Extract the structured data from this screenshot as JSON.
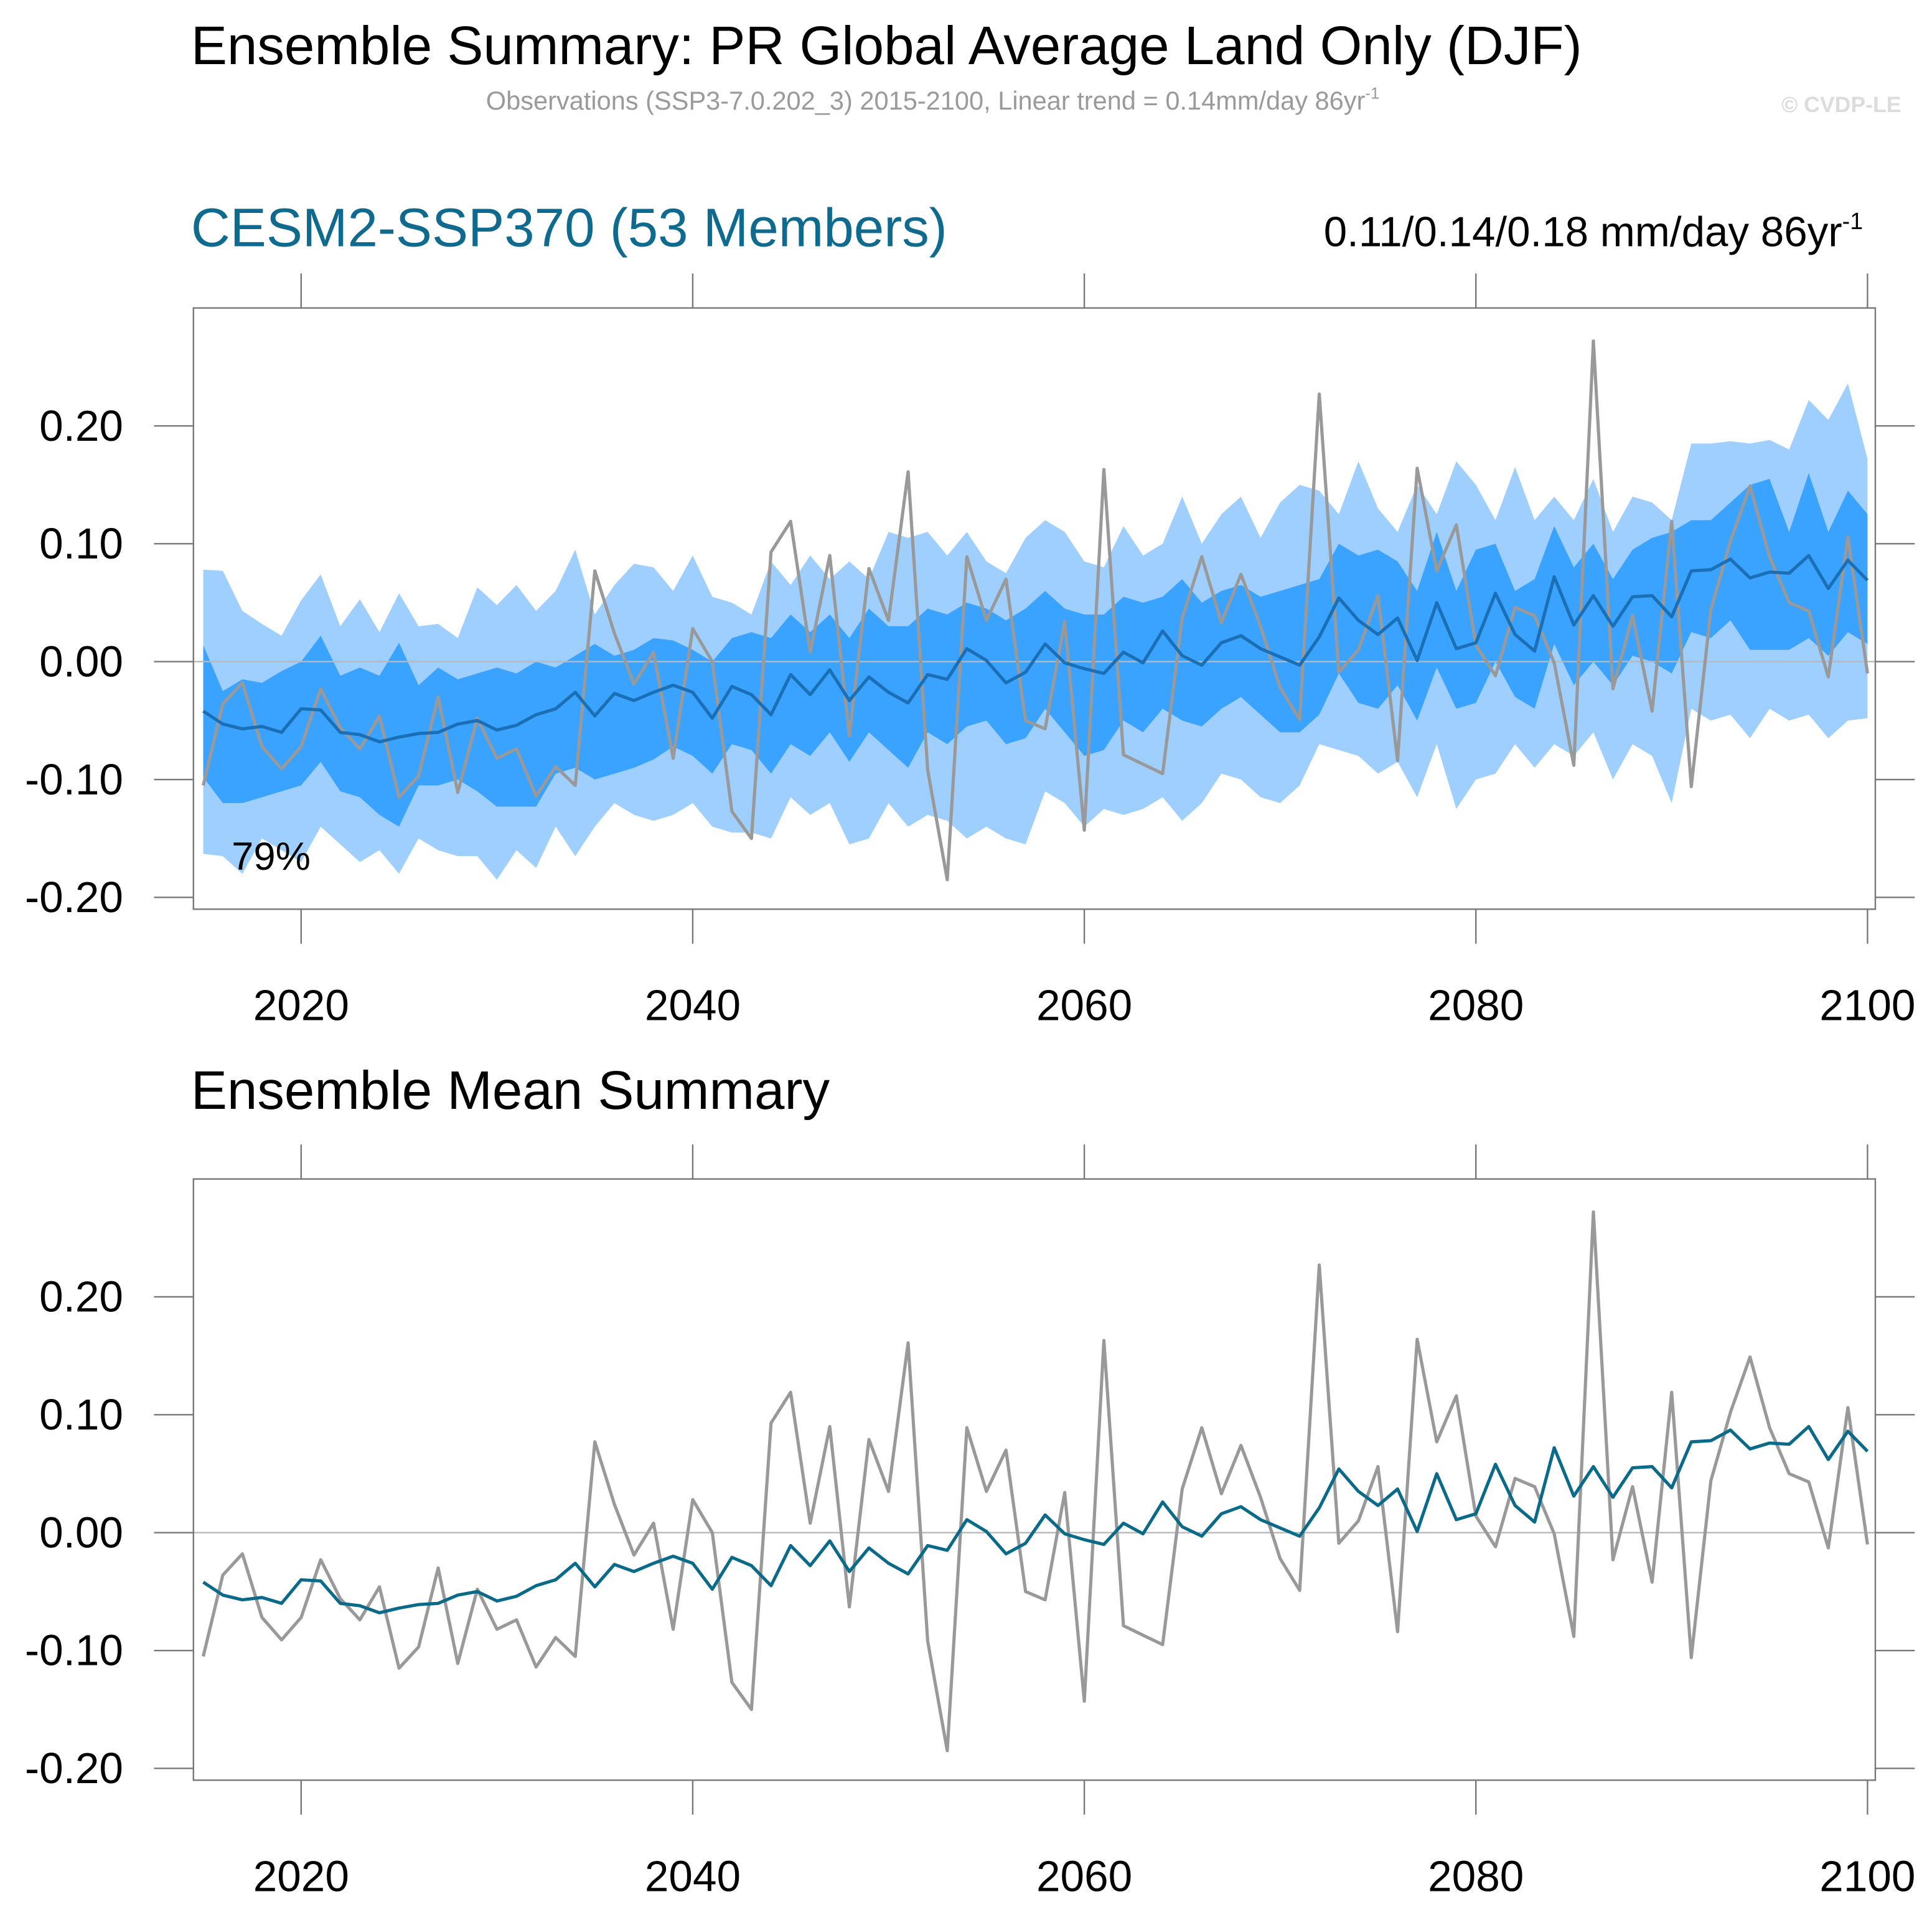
{
  "title": "Ensemble Summary: PR Global Average Land Only (DJF)",
  "subtitle": "Observations (SSP3-7.0.202_3) 2015-2100, Linear trend = 0.14mm/day 86yr",
  "subtitle_sup": "-1",
  "watermark": "© CVDP-LE",
  "chart_data": [
    {
      "type": "band_line",
      "title": "CESM2-SSP370 (53 Members)",
      "annotation": "0.11/0.14/0.18 mm/day 86yr",
      "annotation_sup": "-1",
      "inset_label": "79%",
      "x": [
        2015,
        2016,
        2017,
        2018,
        2019,
        2020,
        2021,
        2022,
        2023,
        2024,
        2025,
        2026,
        2027,
        2028,
        2029,
        2030,
        2031,
        2032,
        2033,
        2034,
        2035,
        2036,
        2037,
        2038,
        2039,
        2040,
        2041,
        2042,
        2043,
        2044,
        2045,
        2046,
        2047,
        2048,
        2049,
        2050,
        2051,
        2052,
        2053,
        2054,
        2055,
        2056,
        2057,
        2058,
        2059,
        2060,
        2061,
        2062,
        2063,
        2064,
        2065,
        2066,
        2067,
        2068,
        2069,
        2070,
        2071,
        2072,
        2073,
        2074,
        2075,
        2076,
        2077,
        2078,
        2079,
        2080,
        2081,
        2082,
        2083,
        2084,
        2085,
        2086,
        2087,
        2088,
        2089,
        2090,
        2091,
        2092,
        2093,
        2094,
        2095,
        2096,
        2097,
        2098,
        2099,
        2100
      ],
      "xlim": [
        2014.5,
        2100.4
      ],
      "xticks": [
        2020,
        2040,
        2060,
        2080,
        2100
      ],
      "ylim": [
        -0.21,
        0.3
      ],
      "yticks": [
        {
          "value": -0.2,
          "label": "-0.20"
        },
        {
          "value": -0.1,
          "label": "-0.10"
        },
        {
          "value": 0,
          "label": "0.00"
        },
        {
          "value": 0.1,
          "label": "0.10"
        },
        {
          "value": 0.2,
          "label": "0.20"
        }
      ],
      "bands": [
        {
          "color": "#9fcfff",
          "upper": [
            0.078,
            0.077,
            0.043,
            0.032,
            0.022,
            0.052,
            0.074,
            0.03,
            0.053,
            0.025,
            0.058,
            0.03,
            0.032,
            0.02,
            0.063,
            0.048,
            0.065,
            0.043,
            0.06,
            0.095,
            0.04,
            0.065,
            0.083,
            0.08,
            0.06,
            0.09,
            0.055,
            0.05,
            0.04,
            0.085,
            0.065,
            0.09,
            0.07,
            0.085,
            0.07,
            0.11,
            0.105,
            0.11,
            0.09,
            0.11,
            0.085,
            0.075,
            0.105,
            0.12,
            0.11,
            0.085,
            0.08,
            0.115,
            0.09,
            0.1,
            0.14,
            0.1,
            0.125,
            0.14,
            0.105,
            0.135,
            0.15,
            0.145,
            0.125,
            0.17,
            0.13,
            0.11,
            0.15,
            0.125,
            0.17,
            0.15,
            0.12,
            0.165,
            0.12,
            0.14,
            0.12,
            0.155,
            0.11,
            0.14,
            0.135,
            0.12,
            0.185,
            0.185,
            0.187,
            0.185,
            0.188,
            0.18,
            0.222,
            0.205,
            0.236,
            0.172
          ],
          "lower": [
            -0.163,
            -0.165,
            -0.18,
            -0.15,
            -0.16,
            -0.17,
            -0.14,
            -0.155,
            -0.17,
            -0.16,
            -0.18,
            -0.15,
            -0.16,
            -0.165,
            -0.165,
            -0.185,
            -0.16,
            -0.175,
            -0.14,
            -0.165,
            -0.14,
            -0.12,
            -0.13,
            -0.135,
            -0.13,
            -0.12,
            -0.14,
            -0.145,
            -0.145,
            -0.15,
            -0.115,
            -0.13,
            -0.12,
            -0.155,
            -0.15,
            -0.12,
            -0.14,
            -0.13,
            -0.135,
            -0.15,
            -0.14,
            -0.15,
            -0.155,
            -0.11,
            -0.12,
            -0.14,
            -0.125,
            -0.13,
            -0.125,
            -0.115,
            -0.135,
            -0.12,
            -0.095,
            -0.1,
            -0.115,
            -0.12,
            -0.105,
            -0.07,
            -0.075,
            -0.08,
            -0.095,
            -0.085,
            -0.115,
            -0.07,
            -0.125,
            -0.1,
            -0.095,
            -0.07,
            -0.09,
            -0.07,
            -0.08,
            -0.06,
            -0.1,
            -0.07,
            -0.08,
            -0.12,
            -0.04,
            -0.05,
            -0.045,
            -0.065,
            -0.04,
            -0.05,
            -0.045,
            -0.065,
            -0.05,
            -0.048
          ]
        },
        {
          "color": "#3aa2ff",
          "upper": [
            0.014,
            -0.025,
            -0.015,
            -0.018,
            -0.008,
            0.0,
            0.022,
            -0.012,
            -0.005,
            -0.012,
            0.016,
            -0.02,
            -0.005,
            -0.015,
            -0.01,
            -0.005,
            -0.01,
            0.0,
            -0.005,
            0.005,
            0.015,
            0.005,
            0.01,
            0.02,
            0.018,
            0.01,
            0.0,
            0.02,
            0.025,
            0.02,
            0.04,
            0.025,
            0.04,
            0.02,
            0.045,
            0.03,
            0.03,
            0.045,
            0.04,
            0.05,
            0.045,
            0.035,
            0.045,
            0.06,
            0.045,
            0.04,
            0.04,
            0.055,
            0.05,
            0.055,
            0.07,
            0.05,
            0.06,
            0.065,
            0.055,
            0.06,
            0.065,
            0.07,
            0.1,
            0.09,
            0.095,
            0.085,
            0.06,
            0.11,
            0.06,
            0.095,
            0.1,
            0.06,
            0.07,
            0.115,
            0.08,
            0.1,
            0.07,
            0.095,
            0.105,
            0.11,
            0.12,
            0.12,
            0.135,
            0.15,
            0.155,
            0.11,
            0.16,
            0.11,
            0.145,
            0.125
          ],
          "lower": [
            -0.098,
            -0.12,
            -0.12,
            -0.115,
            -0.11,
            -0.105,
            -0.085,
            -0.11,
            -0.115,
            -0.13,
            -0.14,
            -0.105,
            -0.105,
            -0.1,
            -0.11,
            -0.123,
            -0.123,
            -0.123,
            -0.095,
            -0.09,
            -0.1,
            -0.095,
            -0.09,
            -0.083,
            -0.072,
            -0.08,
            -0.095,
            -0.07,
            -0.075,
            -0.095,
            -0.07,
            -0.08,
            -0.06,
            -0.085,
            -0.06,
            -0.075,
            -0.09,
            -0.06,
            -0.07,
            -0.055,
            -0.05,
            -0.07,
            -0.065,
            -0.04,
            -0.06,
            -0.08,
            -0.075,
            -0.05,
            -0.06,
            -0.04,
            -0.05,
            -0.055,
            -0.04,
            -0.03,
            -0.045,
            -0.06,
            -0.06,
            -0.045,
            -0.01,
            -0.035,
            -0.04,
            -0.02,
            -0.05,
            -0.005,
            -0.04,
            -0.035,
            0.0,
            -0.03,
            -0.04,
            0.015,
            -0.02,
            0.0,
            -0.02,
            0.005,
            0.0,
            -0.01,
            0.025,
            0.02,
            0.035,
            0.01,
            0.01,
            0.01,
            0.02,
            0.005,
            0.025,
            0.015
          ]
        }
      ],
      "series": [
        {
          "color": "#999999",
          "values": [
            -0.105,
            -0.036,
            -0.018,
            -0.072,
            -0.091,
            -0.072,
            -0.023,
            -0.056,
            -0.074,
            -0.046,
            -0.115,
            -0.097,
            -0.03,
            -0.111,
            -0.048,
            -0.082,
            -0.074,
            -0.114,
            -0.089,
            -0.105,
            0.077,
            0.024,
            -0.019,
            0.008,
            -0.082,
            0.028,
            0.0,
            -0.127,
            -0.15,
            0.093,
            0.119,
            0.008,
            0.09,
            -0.063,
            0.079,
            0.035,
            0.161,
            -0.092,
            -0.185,
            0.089,
            0.035,
            0.07,
            -0.05,
            -0.057,
            0.034,
            -0.143,
            0.163,
            -0.079,
            -0.087,
            -0.095,
            0.037,
            0.089,
            0.033,
            0.074,
            0.03,
            -0.022,
            -0.049,
            0.227,
            -0.009,
            0.01,
            0.056,
            -0.084,
            0.164,
            0.077,
            0.116,
            0.014,
            -0.012,
            0.046,
            0.039,
            -0.001,
            -0.088,
            0.272,
            -0.023,
            0.039,
            -0.042,
            0.119,
            -0.106,
            0.044,
            0.102,
            0.149,
            0.089,
            0.05,
            0.043,
            -0.013,
            0.106,
            -0.01
          ]
        },
        {
          "color": "#1a6fb5",
          "values": [
            -0.042,
            -0.053,
            -0.057,
            -0.055,
            -0.06,
            -0.04,
            -0.041,
            -0.06,
            -0.062,
            -0.068,
            -0.064,
            -0.061,
            -0.06,
            -0.053,
            -0.05,
            -0.058,
            -0.054,
            -0.045,
            -0.04,
            -0.026,
            -0.046,
            -0.027,
            -0.033,
            -0.026,
            -0.02,
            -0.026,
            -0.048,
            -0.021,
            -0.028,
            -0.045,
            -0.011,
            -0.028,
            -0.007,
            -0.033,
            -0.013,
            -0.026,
            -0.035,
            -0.011,
            -0.015,
            0.011,
            0.001,
            -0.018,
            -0.009,
            0.015,
            -0.001,
            -0.006,
            -0.01,
            0.008,
            -0.001,
            0.026,
            0.005,
            -0.003,
            0.016,
            0.022,
            0.011,
            0.004,
            -0.003,
            0.021,
            0.054,
            0.035,
            0.023,
            0.037,
            0.001,
            0.05,
            0.011,
            0.016,
            0.058,
            0.023,
            0.009,
            0.072,
            0.031,
            0.056,
            0.03,
            0.055,
            0.056,
            0.038,
            0.077,
            0.078,
            0.087,
            0.071,
            0.076,
            0.075,
            0.09,
            0.062,
            0.086,
            0.069
          ]
        }
      ]
    },
    {
      "type": "line",
      "title": "Ensemble Mean Summary",
      "x": [
        2015,
        2016,
        2017,
        2018,
        2019,
        2020,
        2021,
        2022,
        2023,
        2024,
        2025,
        2026,
        2027,
        2028,
        2029,
        2030,
        2031,
        2032,
        2033,
        2034,
        2035,
        2036,
        2037,
        2038,
        2039,
        2040,
        2041,
        2042,
        2043,
        2044,
        2045,
        2046,
        2047,
        2048,
        2049,
        2050,
        2051,
        2052,
        2053,
        2054,
        2055,
        2056,
        2057,
        2058,
        2059,
        2060,
        2061,
        2062,
        2063,
        2064,
        2065,
        2066,
        2067,
        2068,
        2069,
        2070,
        2071,
        2072,
        2073,
        2074,
        2075,
        2076,
        2077,
        2078,
        2079,
        2080,
        2081,
        2082,
        2083,
        2084,
        2085,
        2086,
        2087,
        2088,
        2089,
        2090,
        2091,
        2092,
        2093,
        2094,
        2095,
        2096,
        2097,
        2098,
        2099,
        2100
      ],
      "xlim": [
        2014.5,
        2100.4
      ],
      "xticks": [
        2020,
        2040,
        2060,
        2080,
        2100
      ],
      "ylim": [
        -0.21,
        0.3
      ],
      "yticks": [
        {
          "value": -0.2,
          "label": "-0.20"
        },
        {
          "value": -0.1,
          "label": "-0.10"
        },
        {
          "value": 0,
          "label": "0.00"
        },
        {
          "value": 0.1,
          "label": "0.10"
        },
        {
          "value": 0.2,
          "label": "0.20"
        }
      ],
      "series": [
        {
          "color": "#999999",
          "values": [
            -0.105,
            -0.036,
            -0.018,
            -0.072,
            -0.091,
            -0.072,
            -0.023,
            -0.056,
            -0.074,
            -0.046,
            -0.115,
            -0.097,
            -0.03,
            -0.111,
            -0.048,
            -0.082,
            -0.074,
            -0.114,
            -0.089,
            -0.105,
            0.077,
            0.024,
            -0.019,
            0.008,
            -0.082,
            0.028,
            0.0,
            -0.127,
            -0.15,
            0.093,
            0.119,
            0.008,
            0.09,
            -0.063,
            0.079,
            0.035,
            0.161,
            -0.092,
            -0.185,
            0.089,
            0.035,
            0.07,
            -0.05,
            -0.057,
            0.034,
            -0.143,
            0.163,
            -0.079,
            -0.087,
            -0.095,
            0.037,
            0.089,
            0.033,
            0.074,
            0.03,
            -0.022,
            -0.049,
            0.227,
            -0.009,
            0.01,
            0.056,
            -0.084,
            0.164,
            0.077,
            0.116,
            0.014,
            -0.012,
            0.046,
            0.039,
            -0.001,
            -0.088,
            0.272,
            -0.023,
            0.039,
            -0.042,
            0.119,
            -0.106,
            0.044,
            0.102,
            0.149,
            0.089,
            0.05,
            0.043,
            -0.013,
            0.106,
            -0.01
          ]
        },
        {
          "color": "#0a6a8a",
          "values": [
            -0.042,
            -0.053,
            -0.057,
            -0.055,
            -0.06,
            -0.04,
            -0.041,
            -0.06,
            -0.062,
            -0.068,
            -0.064,
            -0.061,
            -0.06,
            -0.053,
            -0.05,
            -0.058,
            -0.054,
            -0.045,
            -0.04,
            -0.026,
            -0.046,
            -0.027,
            -0.033,
            -0.026,
            -0.02,
            -0.026,
            -0.048,
            -0.021,
            -0.028,
            -0.045,
            -0.011,
            -0.028,
            -0.007,
            -0.033,
            -0.013,
            -0.026,
            -0.035,
            -0.011,
            -0.015,
            0.011,
            0.001,
            -0.018,
            -0.009,
            0.015,
            -0.001,
            -0.006,
            -0.01,
            0.008,
            -0.001,
            0.026,
            0.005,
            -0.003,
            0.016,
            0.022,
            0.011,
            0.004,
            -0.003,
            0.021,
            0.054,
            0.035,
            0.023,
            0.037,
            0.001,
            0.05,
            0.011,
            0.016,
            0.058,
            0.023,
            0.009,
            0.072,
            0.031,
            0.056,
            0.03,
            0.055,
            0.056,
            0.038,
            0.077,
            0.078,
            0.087,
            0.071,
            0.076,
            0.075,
            0.09,
            0.062,
            0.086,
            0.069
          ]
        }
      ]
    }
  ]
}
